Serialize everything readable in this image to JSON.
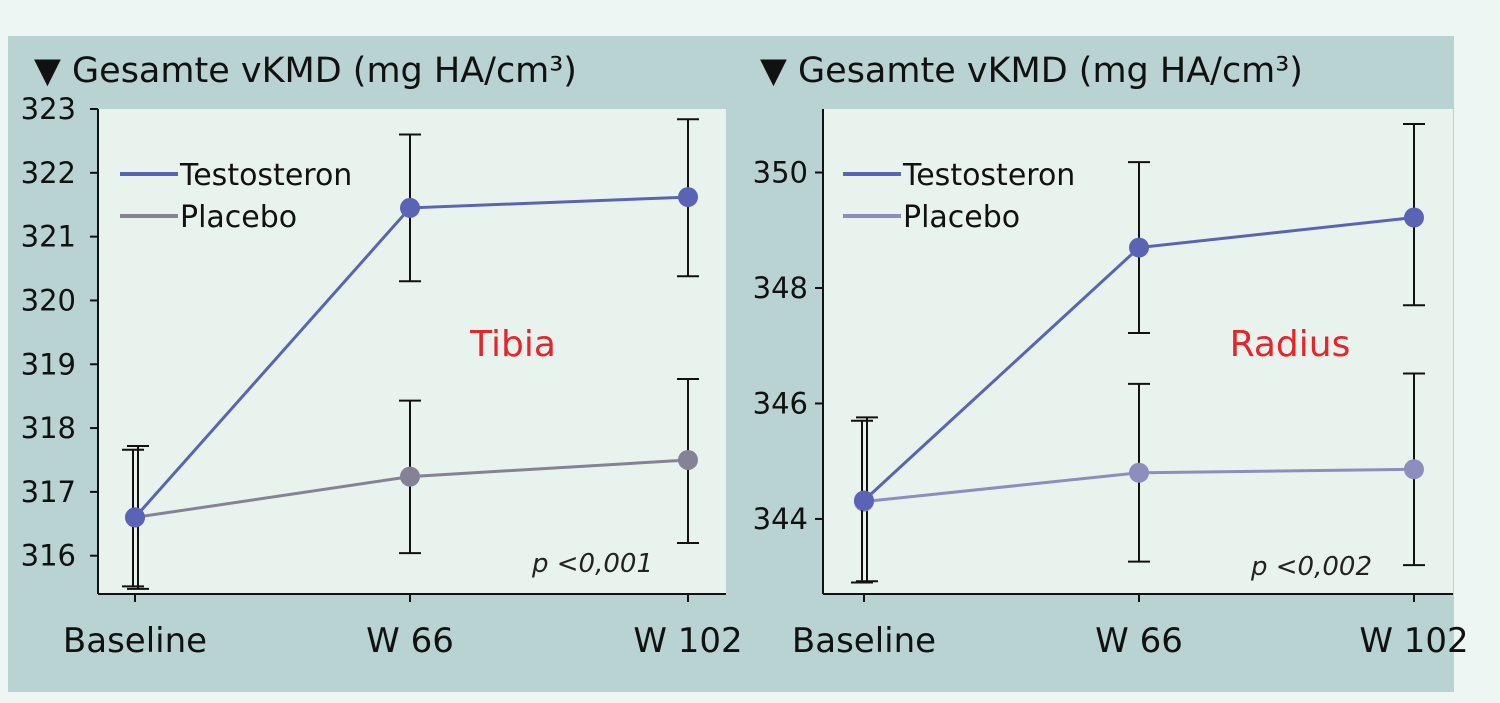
{
  "colors": {
    "page_bg": "#eef6f4",
    "panel_bg": "#b9d3d2",
    "plot_bg": "#e9f3ee",
    "testosteron": "#5b63b4",
    "placebo_tibia": "#858295",
    "placebo_radius": "#8c8fbe",
    "site_label": "#e8232a",
    "axis": "#111111"
  },
  "chart_data": [
    {
      "type": "line",
      "title": "▼ Gesamte vKMD (mg HA/cm³)",
      "site_label": "Tibia",
      "p_value": "p <0,001",
      "categories": [
        "Baseline",
        "W 66",
        "W 102"
      ],
      "ylim": [
        315.4,
        323
      ],
      "yticks": [
        316,
        317,
        318,
        319,
        320,
        321,
        322,
        323
      ],
      "legend_position": "top-left",
      "grid": false,
      "series": [
        {
          "name": "Testosteron",
          "color_key": "testosteron",
          "values": [
            316.6,
            321.45,
            321.62
          ],
          "err_low": [
            315.52,
            320.3,
            320.38
          ],
          "err_high": [
            317.66,
            322.6,
            322.84
          ]
        },
        {
          "name": "Placebo",
          "color_key": "placebo_tibia",
          "values": [
            316.6,
            317.24,
            317.5
          ],
          "err_low": [
            315.48,
            316.04,
            316.2
          ],
          "err_high": [
            317.72,
            318.43,
            318.77
          ]
        }
      ]
    },
    {
      "type": "line",
      "title": "▼ Gesamte vKMD (mg HA/cm³)",
      "site_label": "Radius",
      "p_value": "p <0,002",
      "categories": [
        "Baseline",
        "W 66",
        "W 102"
      ],
      "ylim": [
        342.7,
        351.1
      ],
      "yticks": [
        344,
        346,
        348,
        350
      ],
      "legend_position": "top-left",
      "grid": false,
      "series": [
        {
          "name": "Testosteron",
          "color_key": "testosteron",
          "values": [
            344.32,
            348.7,
            349.22
          ],
          "err_low": [
            342.9,
            347.22,
            347.7
          ],
          "err_high": [
            345.7,
            350.18,
            350.84
          ]
        },
        {
          "name": "Placebo",
          "color_key": "placebo_radius",
          "values": [
            344.3,
            344.8,
            344.86
          ],
          "err_low": [
            342.92,
            343.26,
            343.2
          ],
          "err_high": [
            345.76,
            346.34,
            346.52
          ]
        }
      ]
    }
  ]
}
